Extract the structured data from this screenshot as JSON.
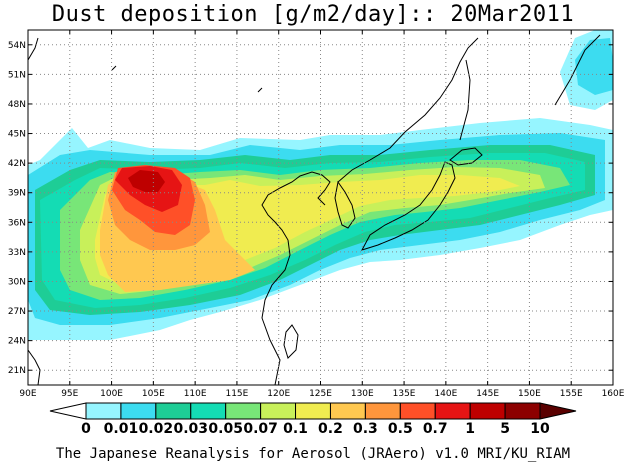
{
  "title": "Dust deposition [g/m2/day]:: 20Mar2011",
  "footer": "The Japanese Reanalysis for Aerosol (JRAero) v1.0 MRI/KU_RIAM",
  "map": {
    "lon_ticks": [
      "90E",
      "95E",
      "100E",
      "105E",
      "110E",
      "115E",
      "120E",
      "125E",
      "130E",
      "135E",
      "140E",
      "145E",
      "150E",
      "155E",
      "160E"
    ],
    "lat_ticks": [
      "21N",
      "24N",
      "27N",
      "30N",
      "33N",
      "36N",
      "39N",
      "42N",
      "45N",
      "48N",
      "51N",
      "54N"
    ],
    "lon_range": [
      90,
      160
    ],
    "lat_range": [
      19.5,
      55.5
    ]
  },
  "colorbar": {
    "labels": [
      "0",
      "0.01",
      "0.02",
      "0.03",
      "0.05",
      "0.07",
      "0.1",
      "0.2",
      "0.3",
      "0.5",
      "0.7",
      "1",
      "5",
      "10"
    ],
    "colors": [
      "#ffffff",
      "#96f5ff",
      "#3cdcf0",
      "#1ecd96",
      "#14dcb4",
      "#78e678",
      "#c8f05a",
      "#f0ec50",
      "#ffc850",
      "#ff963c",
      "#ff5028",
      "#e61414",
      "#be0000",
      "#8c0000",
      "#5a0000"
    ]
  }
}
